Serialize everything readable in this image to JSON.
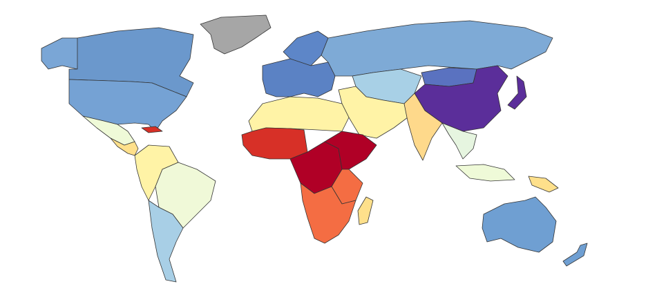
{
  "map": {
    "type": "choropleth",
    "legend": "none",
    "no_data_color": "#a6a6a6",
    "regions": {
      "greenland": "#a6a6a6",
      "canada": "#6b98cc",
      "alaska": "#7aa6d6",
      "usa": "#75a2d4",
      "mexico": "#effad8",
      "central-america": "#fee08b",
      "caribbean": "#d73027",
      "northern-south-america": "#fff3a6",
      "brazil": "#f0f9d8",
      "southern-cone": "#a8cfe6",
      "europe": "#5b82c4",
      "scandinavia": "#5d86c8",
      "russia": "#7eaad6",
      "central-asia": "#a8d0e6",
      "north-africa": "#fff3a6",
      "west-africa": "#d73027",
      "central-africa": "#b00026",
      "east-africa": "#f46d43",
      "southern-africa": "#f46d43",
      "horn-of-africa": "#b00026",
      "madagascar": "#fee08b",
      "middle-east": "#fff3a6",
      "india": "#fed98b",
      "mongolia": "#5a72c0",
      "china": "#5b2e9a",
      "japan": "#5b2e9a",
      "southeast-asia": "#e6f5e0",
      "indonesia": "#effad8",
      "papua": "#fee08b",
      "australia": "#6f9fd2",
      "new-zealand": "#6f9fd2"
    }
  }
}
